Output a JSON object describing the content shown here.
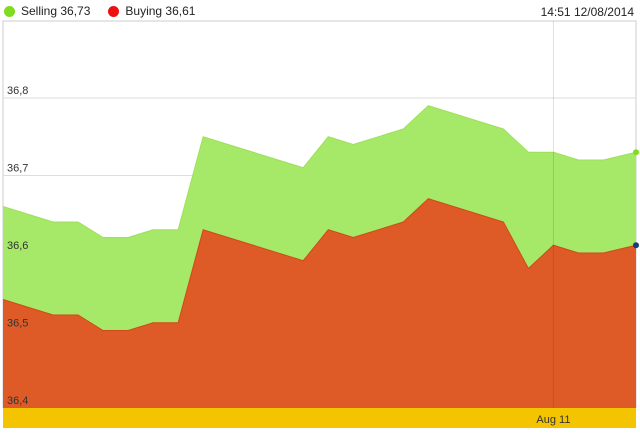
{
  "legend": {
    "selling_label": "Selling 36,73",
    "buying_label": "Buying 36,61"
  },
  "timestamp": "14:51 12/08/2014",
  "colors": {
    "selling": "#a6e868",
    "buying": "#de5b28",
    "selling_dot": "#7fdc1e",
    "buying_dot": "#ee1111",
    "axis_band": "#f5c400",
    "grid": "#dddddd"
  },
  "chart_data": {
    "type": "area",
    "title": "",
    "x": [
      0,
      2,
      3,
      4,
      5,
      6,
      7,
      8,
      12,
      13,
      14,
      16,
      17,
      20,
      21,
      22,
      23,
      24,
      25.3
    ],
    "xlim": [
      0,
      25.3
    ],
    "ylim": [
      36.4,
      36.9
    ],
    "y_ticks": [
      36.4,
      36.5,
      36.6,
      36.7,
      36.8
    ],
    "y_tick_labels": [
      "36,4",
      "36,5",
      "36,6",
      "36,7",
      "36,8"
    ],
    "x_ticks": [
      22
    ],
    "x_tick_labels": [
      "Aug 11"
    ],
    "grid": true,
    "series": [
      {
        "name": "Selling",
        "values": [
          36.66,
          36.64,
          36.64,
          36.62,
          36.62,
          36.63,
          36.63,
          36.75,
          36.71,
          36.75,
          36.74,
          36.76,
          36.79,
          36.76,
          36.73,
          36.73,
          36.72,
          36.72,
          36.73
        ]
      },
      {
        "name": "Buying",
        "values": [
          36.54,
          36.52,
          36.52,
          36.5,
          36.5,
          36.51,
          36.51,
          36.63,
          36.59,
          36.63,
          36.62,
          36.64,
          36.67,
          36.64,
          36.58,
          36.61,
          36.6,
          36.6,
          36.61
        ]
      }
    ]
  }
}
